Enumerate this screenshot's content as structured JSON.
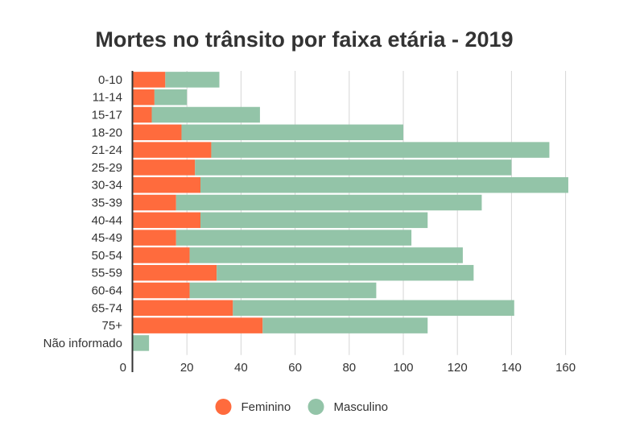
{
  "chart_data": {
    "type": "bar",
    "orientation": "horizontal",
    "stacked": true,
    "title": "Mortes no trânsito por faixa etária - 2019",
    "xlabel": "",
    "ylabel": "",
    "xlim": [
      0,
      162
    ],
    "xticks": [
      0,
      20,
      40,
      60,
      80,
      100,
      120,
      140,
      160
    ],
    "grid": true,
    "legend_position": "bottom",
    "categories": [
      "0-10",
      "11-14",
      "15-17",
      "18-20",
      "21-24",
      "25-29",
      "30-34",
      "35-39",
      "40-44",
      "45-49",
      "50-54",
      "55-59",
      "60-64",
      "65-74",
      "75+",
      "Não informado"
    ],
    "series": [
      {
        "name": "Feminino",
        "color": "#ff6b3d",
        "values": [
          12,
          8,
          7,
          18,
          29,
          23,
          25,
          16,
          25,
          16,
          21,
          31,
          21,
          37,
          48,
          0
        ]
      },
      {
        "name": "Masculino",
        "color": "#93c4a8",
        "values": [
          20,
          12,
          40,
          82,
          125,
          117,
          136,
          113,
          84,
          87,
          101,
          95,
          69,
          104,
          61,
          6
        ]
      }
    ]
  }
}
